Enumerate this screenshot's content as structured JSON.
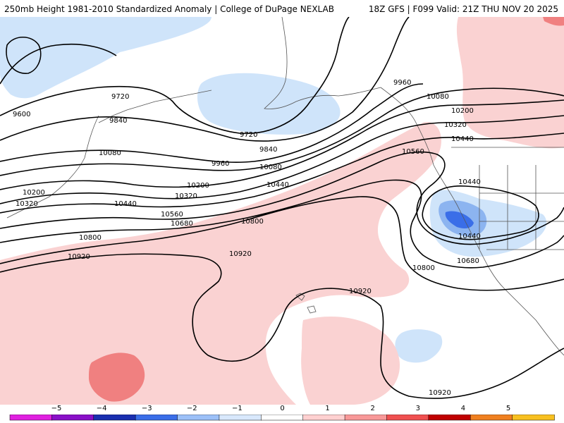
{
  "header": {
    "title_left": "250mb Height 1981-2010 Standardized Anomaly | College of DuPage NEXLAB",
    "title_right": "18Z GFS | F099 Valid: 21Z THU NOV 20 2025"
  },
  "contour_labels": {
    "l9600": "9600",
    "l9720a": "9720",
    "l9720b": "9720",
    "l9840a": "9840",
    "l9840b": "9840",
    "l9960a": "9960",
    "l9960b": "9960",
    "l10080a": "10080",
    "l10080b": "10080",
    "l10080c": "10080",
    "l10200a": "10200",
    "l10200b": "10200",
    "l10200c": "10200",
    "l10320a": "10320",
    "l10320b": "10320",
    "l10320c": "10320",
    "l10440a": "10440",
    "l10440b": "10440",
    "l10440c": "10440",
    "l10440d": "10440",
    "l10440e": "10440",
    "l10560a": "10560",
    "l10560b": "10560",
    "l10680a": "10680",
    "l10680b": "10680",
    "l10800a": "10800",
    "l10800b": "10800",
    "l10800c": "10800",
    "l10920a": "10920",
    "l10920b": "10920",
    "l10920c": "10920",
    "l10920d": "10920"
  },
  "colorbar": {
    "ticks": [
      "−5",
      "−4",
      "−3",
      "−2",
      "−1",
      "0",
      "1",
      "2",
      "3",
      "4",
      "5"
    ],
    "colors": [
      "#e020e0",
      "#8a10c8",
      "#1a2fb0",
      "#3a6ee8",
      "#9cc0f8",
      "#d8e8fc",
      "#ffffff",
      "#ffd0d0",
      "#f89898",
      "#f05050",
      "#c00000",
      "#f08020",
      "#f8c020"
    ]
  },
  "anomaly_colors": {
    "neg1": "#cfe4fa",
    "neg2": "#8cb4f0",
    "neg3": "#3a6ee8",
    "pos1": "#fad2d2",
    "pos2": "#f08080",
    "pos3": "#e85050"
  }
}
